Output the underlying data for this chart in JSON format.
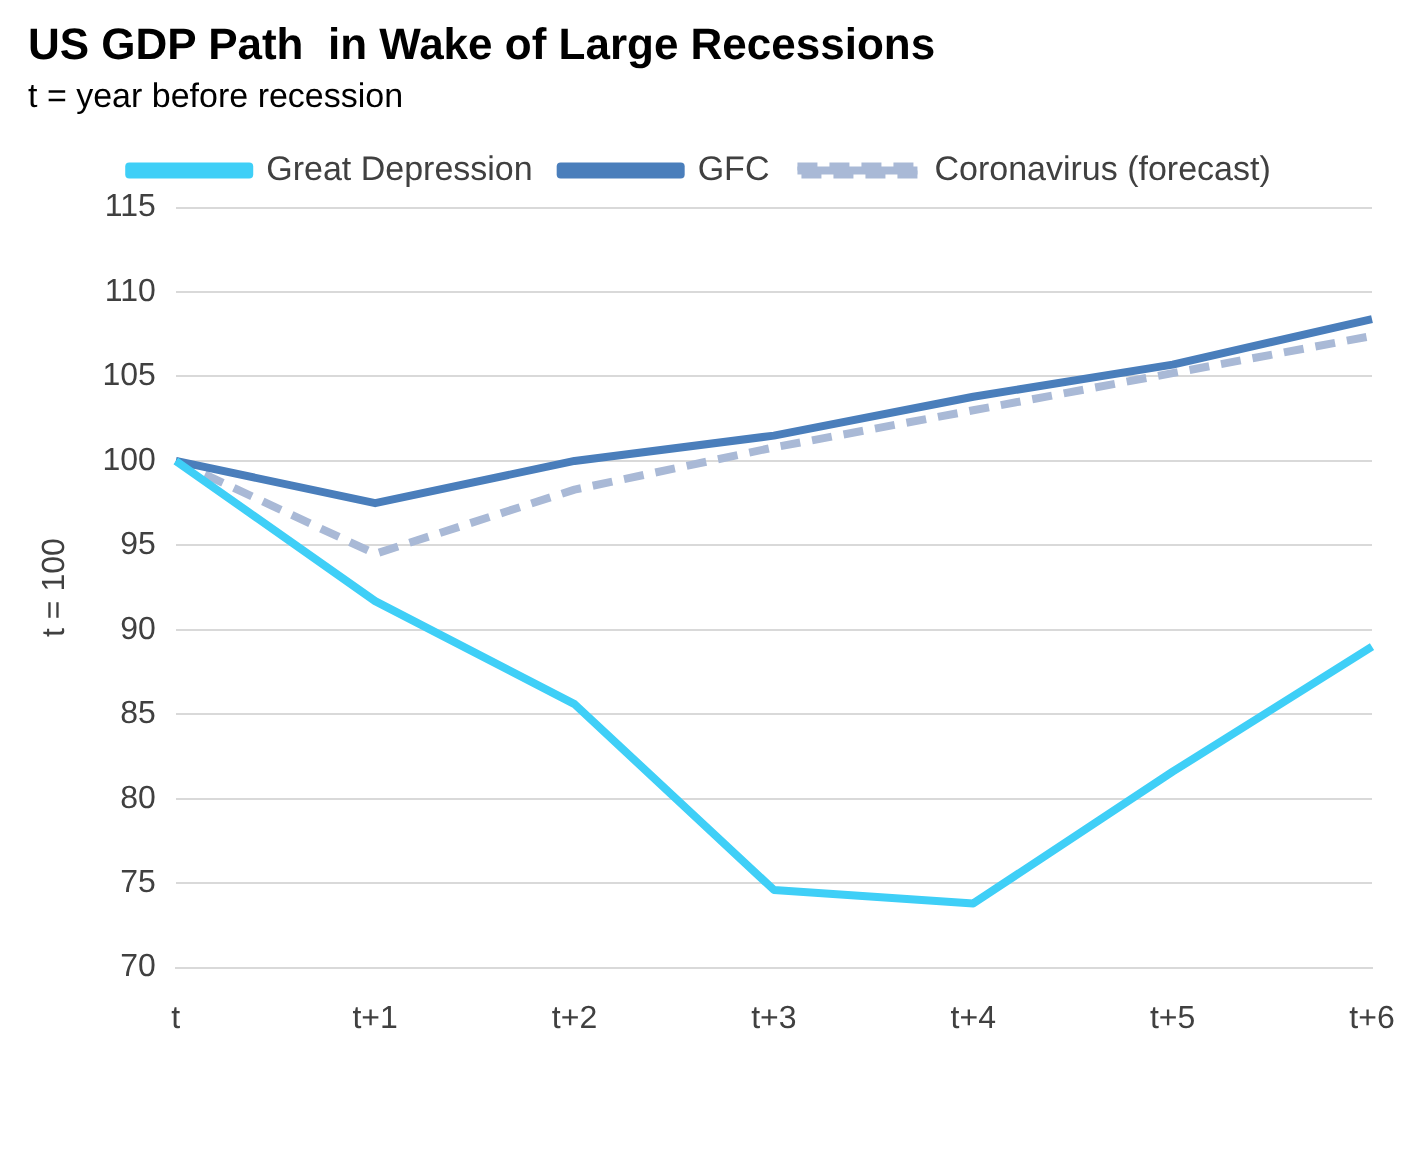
{
  "chart_data": {
    "type": "line",
    "title": "US GDP Path  in Wake of Large Recessions",
    "subtitle": "t = year before recession",
    "ylabel": "t = 100",
    "categories": [
      "t",
      "t+1",
      "t+2",
      "t+3",
      "t+4",
      "t+5",
      "t+6"
    ],
    "series": [
      {
        "name": "Great Depression",
        "color": "#3fcff7",
        "values": [
          100,
          91.7,
          85.6,
          74.6,
          73.8,
          81.6,
          89.0
        ]
      },
      {
        "name": "GFC",
        "color": "#4a7ebb",
        "values": [
          100,
          97.5,
          100,
          101.5,
          103.8,
          105.7,
          108.4
        ]
      },
      {
        "name": "Coronavirus (forecast)",
        "color": "#a9b9d6",
        "line_style": "dashed",
        "values": [
          100,
          94.5,
          98.3,
          100.8,
          103.0,
          105.2,
          107.4
        ]
      }
    ],
    "ylim": [
      70,
      115
    ],
    "yticks": [
      70,
      75,
      80,
      85,
      90,
      95,
      100,
      105,
      110,
      115
    ],
    "grid": "y",
    "legend": "top",
    "marker": "none",
    "line_style": "solid"
  }
}
